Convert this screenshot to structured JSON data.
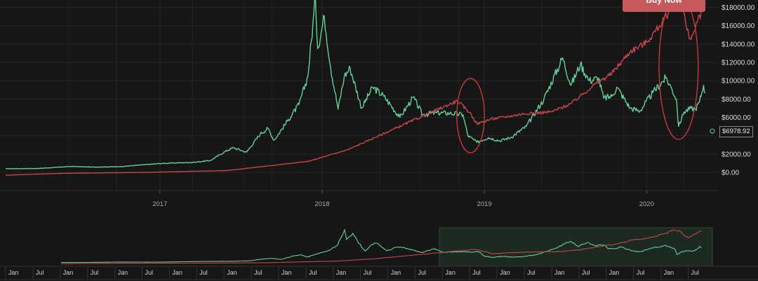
{
  "buy_button": {
    "label": "Buy Now"
  },
  "price_tag": {
    "label": "$6978.92"
  },
  "chart_data": {
    "type": "line",
    "x_ticks": [
      "2017",
      "2018",
      "2019",
      "2020"
    ],
    "y_ticks": [
      "$0.00",
      "$2000.00",
      "$6000.00",
      "$8000.00",
      "$10000.00",
      "$12000.00",
      "$14000.00",
      "$16000.00",
      "$18000.00"
    ],
    "ylim": [
      -1000,
      19000
    ],
    "xlim": [
      "2016-01-20",
      "2020-06-08"
    ],
    "grid": true,
    "series": [
      {
        "color": "#5fd19a",
        "points": [
          [
            "2016-01-20",
            400
          ],
          [
            "2016-04-01",
            420
          ],
          [
            "2016-06-15",
            650
          ],
          [
            "2016-08-01",
            580
          ],
          [
            "2016-10-01",
            620
          ],
          [
            "2016-12-31",
            960
          ],
          [
            "2017-02-15",
            1050
          ],
          [
            "2017-03-20",
            1100
          ],
          [
            "2017-04-25",
            1300
          ],
          [
            "2017-05-25",
            2200
          ],
          [
            "2017-06-15",
            2700
          ],
          [
            "2017-07-15",
            2200
          ],
          [
            "2017-08-15",
            4200
          ],
          [
            "2017-09-01",
            4800
          ],
          [
            "2017-09-15",
            3500
          ],
          [
            "2017-10-15",
            5600
          ],
          [
            "2017-11-10",
            7400
          ],
          [
            "2017-11-30",
            10500
          ],
          [
            "2017-12-17",
            19000
          ],
          [
            "2017-12-22",
            13500
          ],
          [
            "2018-01-06",
            17000
          ],
          [
            "2018-01-20",
            11500
          ],
          [
            "2018-02-06",
            6900
          ],
          [
            "2018-02-20",
            10500
          ],
          [
            "2018-03-05",
            11400
          ],
          [
            "2018-03-31",
            7000
          ],
          [
            "2018-04-25",
            9300
          ],
          [
            "2018-05-20",
            8300
          ],
          [
            "2018-06-25",
            6000
          ],
          [
            "2018-07-25",
            8200
          ],
          [
            "2018-08-15",
            6300
          ],
          [
            "2018-09-15",
            6500
          ],
          [
            "2018-10-15",
            6450
          ],
          [
            "2018-11-14",
            6300
          ],
          [
            "2018-11-25",
            4000
          ],
          [
            "2018-12-15",
            3300
          ],
          [
            "2019-01-10",
            3800
          ],
          [
            "2019-02-05",
            3450
          ],
          [
            "2019-03-01",
            3800
          ],
          [
            "2019-04-05",
            5000
          ],
          [
            "2019-05-15",
            8000
          ],
          [
            "2019-06-26",
            12500
          ],
          [
            "2019-07-15",
            9500
          ],
          [
            "2019-08-05",
            11800
          ],
          [
            "2019-08-25",
            10000
          ],
          [
            "2019-09-15",
            10300
          ],
          [
            "2019-09-26",
            8100
          ],
          [
            "2019-10-15",
            8300
          ],
          [
            "2019-10-26",
            9300
          ],
          [
            "2019-11-25",
            7000
          ],
          [
            "2019-12-17",
            6700
          ],
          [
            "2020-01-15",
            8700
          ],
          [
            "2020-02-13",
            10300
          ],
          [
            "2020-02-25",
            9300
          ],
          [
            "2020-03-08",
            8000
          ],
          [
            "2020-03-13",
            5000
          ],
          [
            "2020-03-25",
            6600
          ],
          [
            "2020-04-10",
            7000
          ],
          [
            "2020-04-20",
            6900
          ],
          [
            "2020-04-29",
            7700
          ],
          [
            "2020-05-08",
            9500
          ],
          [
            "2020-05-12",
            8700
          ]
        ]
      },
      {
        "color": "#c8454d",
        "points": [
          [
            "2016-01-20",
            -300
          ],
          [
            "2016-06-01",
            -100
          ],
          [
            "2016-12-01",
            0
          ],
          [
            "2017-06-01",
            200
          ],
          [
            "2017-12-01",
            1200
          ],
          [
            "2018-03-01",
            2500
          ],
          [
            "2018-06-01",
            4500
          ],
          [
            "2018-09-01",
            6500
          ],
          [
            "2018-11-01",
            7800
          ],
          [
            "2018-11-30",
            6500
          ],
          [
            "2018-12-15",
            5300
          ],
          [
            "2019-01-15",
            5800
          ],
          [
            "2019-04-01",
            6400
          ],
          [
            "2019-06-01",
            6600
          ],
          [
            "2019-07-15",
            7500
          ],
          [
            "2019-09-01",
            9400
          ],
          [
            "2019-10-15",
            10800
          ],
          [
            "2019-11-25",
            13200
          ],
          [
            "2020-01-01",
            14200
          ],
          [
            "2020-02-15",
            17000
          ],
          [
            "2020-03-05",
            19000
          ],
          [
            "2020-03-20",
            18500
          ],
          [
            "2020-04-01",
            15500
          ],
          [
            "2020-04-10",
            14500
          ],
          [
            "2020-04-25",
            16500
          ],
          [
            "2020-05-12",
            18500
          ]
        ]
      }
    ],
    "annotations": [
      {
        "type": "ellipse",
        "shape": "circle",
        "center": [
          "2018-12-01",
          6200
        ],
        "rx_days": 31,
        "ry_value": 4050,
        "color": "#d13a3a"
      },
      {
        "type": "ellipse",
        "shape": "oval",
        "center": [
          "2020-03-13",
          11500
        ],
        "rx_days": 44,
        "ry_value": 7900,
        "color": "#d13a3a"
      }
    ],
    "navigator": {
      "labels": [
        "Jan",
        "Jul",
        "Jan",
        "Jul",
        "Jan",
        "Jul",
        "Jan",
        "Jul",
        "Jan",
        "Jul",
        "Jan",
        "Jul",
        "Jan",
        "Jul",
        "Jan",
        "Jul",
        "Jan",
        "Jul",
        "Jan",
        "Jul",
        "Jan",
        "Jul",
        "Jan",
        "Jul",
        "Jan",
        "Jul"
      ],
      "selection": [
        "2016-01-20",
        "2020-06-08"
      ]
    }
  }
}
